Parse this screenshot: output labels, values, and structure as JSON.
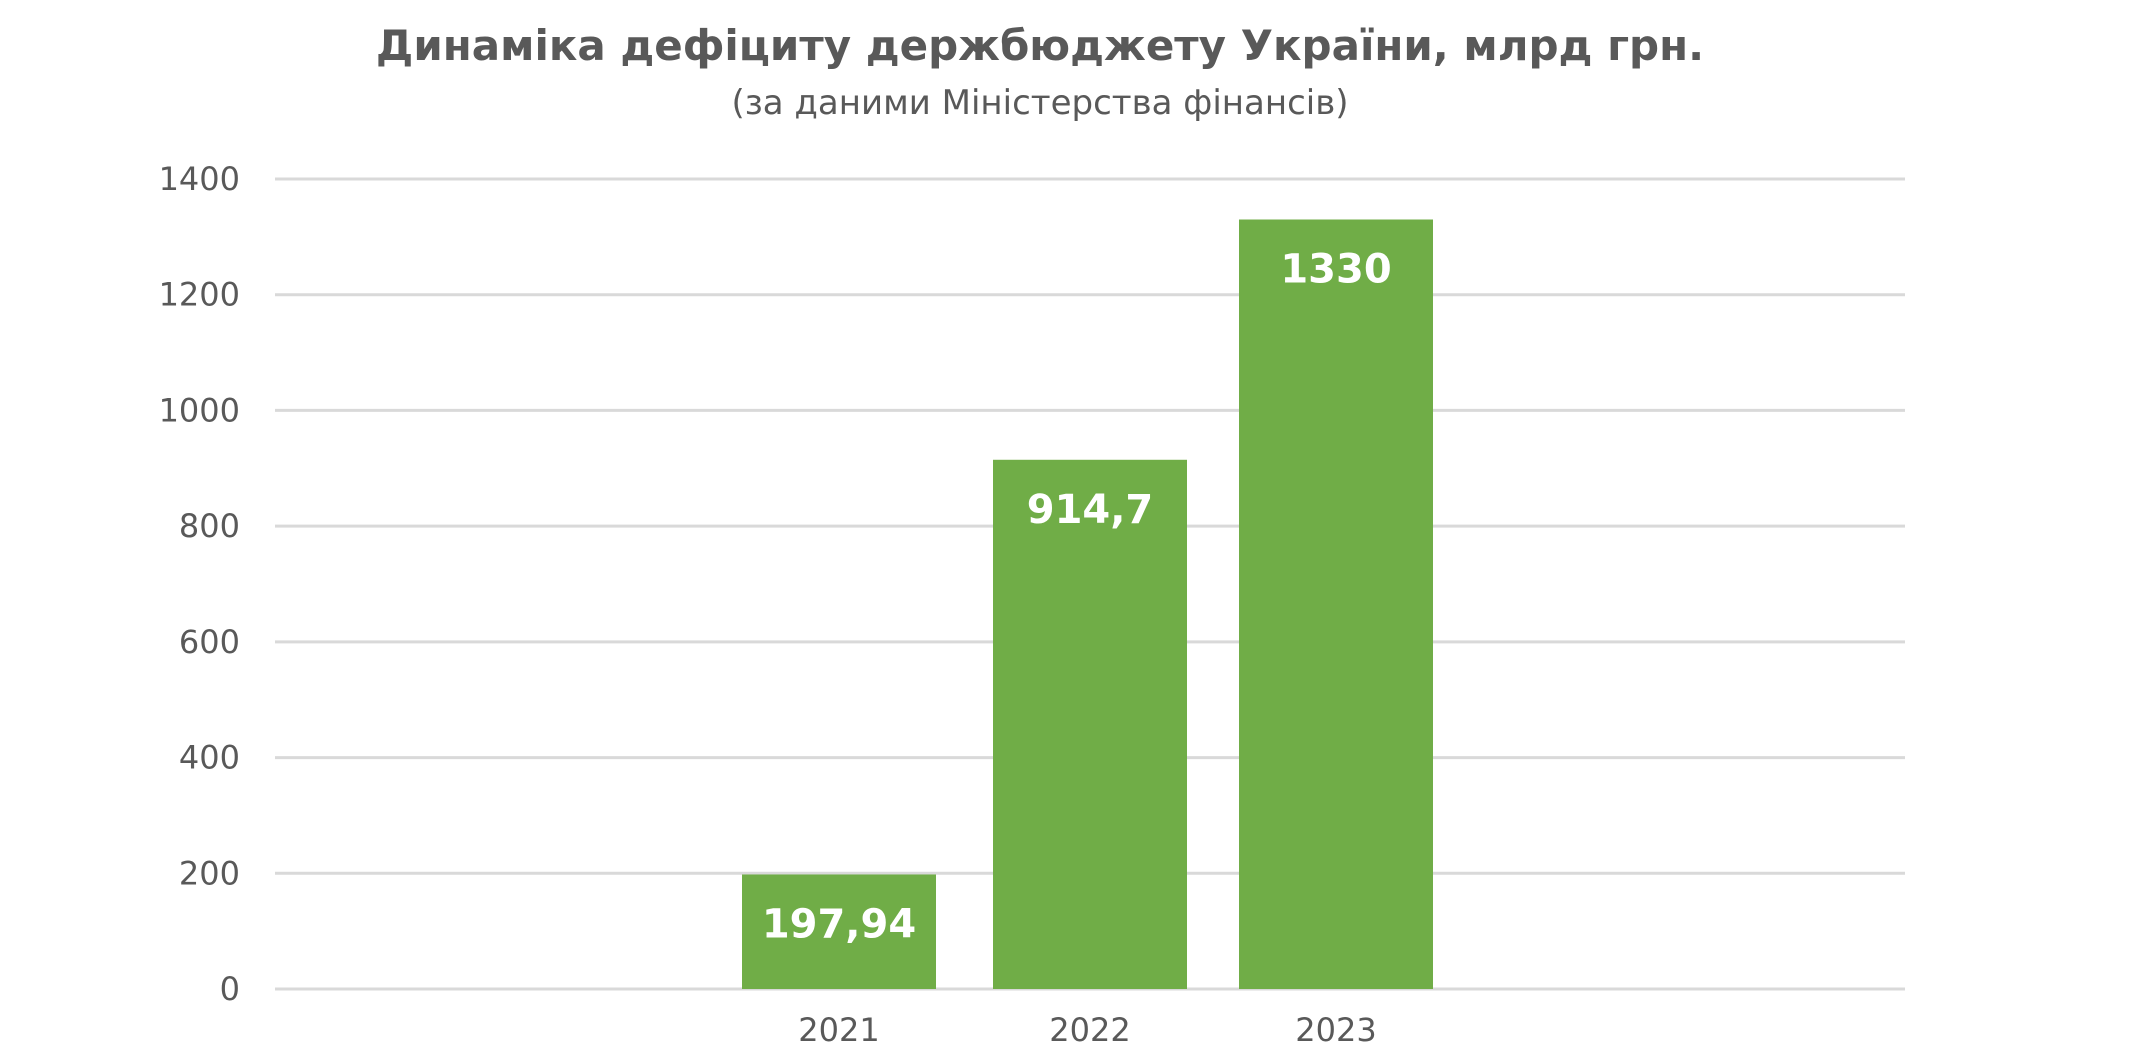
{
  "chart_data": {
    "type": "bar",
    "title": "Динаміка дефіциту держбюджету України, млрд грн.",
    "subtitle": "(за даними Міністерства фінансів)",
    "categories": [
      "2021",
      "2022",
      "2023"
    ],
    "values": [
      197.94,
      914.7,
      1330
    ],
    "data_labels": [
      "197,94",
      "914,7",
      "1330"
    ],
    "yticks": [
      0,
      200,
      400,
      600,
      800,
      1000,
      1200,
      1400
    ],
    "ylim": [
      0,
      1400
    ],
    "xlabel": "",
    "ylabel": "",
    "grid": true,
    "legend": "none",
    "colors": {
      "bar": "#70AD47",
      "grid": "#D9D9D9",
      "text": "#595959",
      "label": "#FFFFFF"
    }
  }
}
